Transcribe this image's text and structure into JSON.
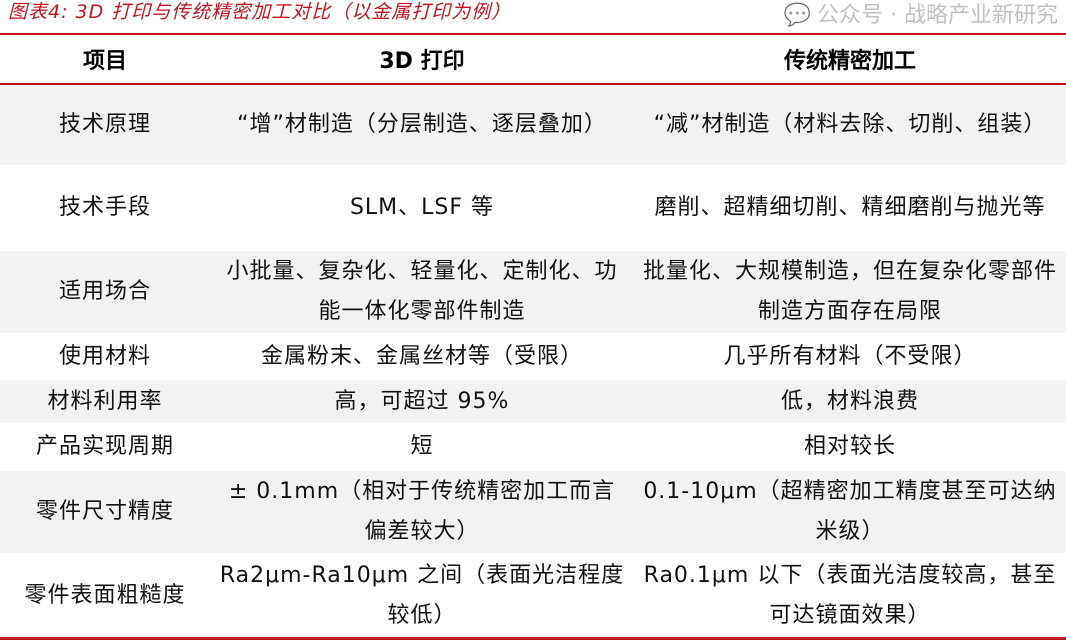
{
  "title": "图表4:  3D 打印与传统精密加工对比（以金属打印为例）",
  "headers": [
    "项目",
    "3D 打印",
    "传统精密加工"
  ],
  "rows": [
    [
      "技术原理",
      "“增”材制造（分层制造、逐层叠加）",
      "“减”材制造（材料去除、切削、组装）"
    ],
    [
      "技术手段",
      "SLM、LSF 等",
      "磨削、超精细切削、精细磨削与抛光等"
    ],
    [
      "适用场合",
      "小批量、复杂化、轻量化、定制化、功能一体化零部件制造",
      "批量化、大规模制造，但在复杂化零部件制造方面存在局限"
    ],
    [
      "使用材料",
      "金属粉末、金属丝材等（受限）",
      "几乎所有材料（不受限）"
    ],
    [
      "材料利用率",
      "高，可超过 95%",
      "低，材料浪费"
    ],
    [
      "产品实现周期",
      "短",
      "相对较长"
    ],
    [
      "零件尺寸精度",
      "± 0.1mm（相对于传统精密加工而言偏差较大）",
      "0.1-10μm（超精密加工精度甚至可达纳米级）"
    ],
    [
      "零件表面粗糙度",
      "Ra2μm-Ra10μm 之间（表面光洁程度较低）",
      "Ra0.1μm 以下（表面光洁度较高，甚至可达镜面效果）"
    ]
  ],
  "watermark": {
    "icon": "wechat-icon",
    "text": "公众号 · 战略产业新研究"
  },
  "colors": {
    "accent": "#c0141e",
    "row_shade": "#f2f2f2"
  }
}
